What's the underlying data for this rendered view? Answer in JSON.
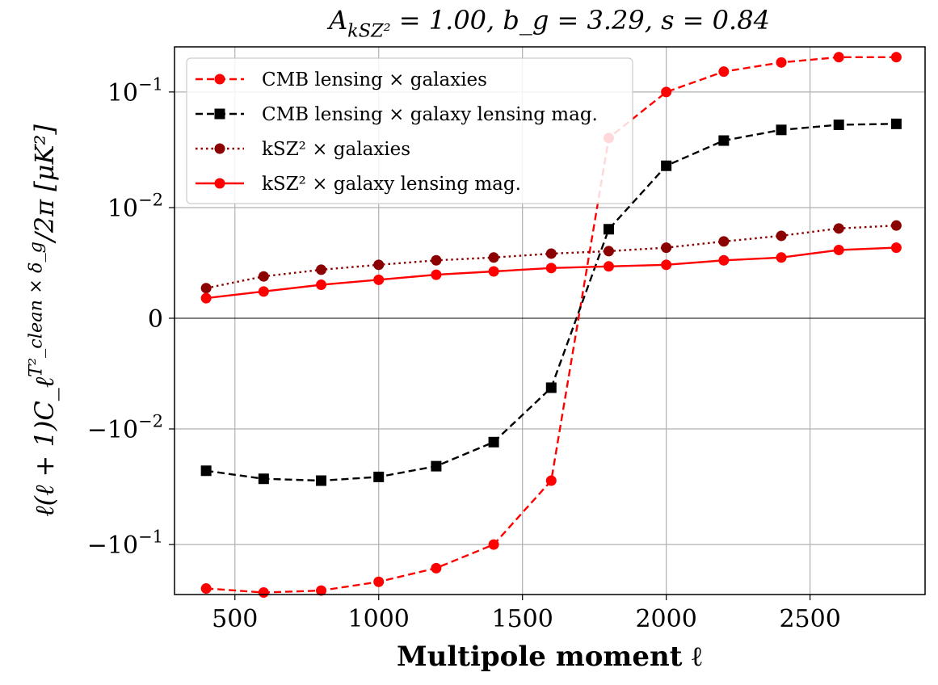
{
  "chart_data": {
    "type": "line",
    "title": "A_{kSZ²} = 1.00, b_g = 3.29, s = 0.84",
    "xlabel": "Multipole moment ℓ",
    "ylabel": "ℓ(ℓ + 1)C_ℓ^{T²_clean × δ_g}/2π [μK²]",
    "xlim": [
      290,
      2900
    ],
    "yscale": "symlog",
    "linthresh": 0.003,
    "x_ticks": [
      500,
      1000,
      1500,
      2000,
      2500
    ],
    "x_tick_labels": [
      "500",
      "1000",
      "1500",
      "2000",
      "2500"
    ],
    "y_ticks": [
      -0.1,
      -0.01,
      0,
      0.01,
      0.1
    ],
    "y_tick_labels": [
      "−10^{−1}",
      "−10^{−2}",
      "0",
      "10^{−2}",
      "10^{−1}"
    ],
    "grid": true,
    "legend_position": "upper-left",
    "x": [
      400,
      600,
      800,
      1000,
      1200,
      1400,
      1600,
      1800,
      2000,
      2200,
      2400,
      2600,
      2800
    ],
    "series": [
      {
        "name": "CMB lensing × galaxies",
        "color": "#ff0000",
        "linestyle": "dashed",
        "marker": "circle",
        "values": [
          -0.24,
          -0.26,
          -0.25,
          -0.21,
          -0.16,
          -0.1,
          -0.028,
          0.04,
          0.1,
          0.15,
          0.18,
          0.2,
          0.2
        ]
      },
      {
        "name": "CMB lensing × galaxy lensing mag.",
        "color": "#000000",
        "linestyle": "dashed",
        "marker": "square",
        "values": [
          -0.023,
          -0.027,
          -0.028,
          -0.026,
          -0.021,
          -0.013,
          -0.0044,
          0.0065,
          0.023,
          0.038,
          0.047,
          0.052,
          0.053
        ]
      },
      {
        "name": "kSZ² × galaxies",
        "color": "#8b0000",
        "linestyle": "dotted",
        "marker": "circle",
        "values": [
          0.0018,
          0.0025,
          0.0029,
          0.0032,
          0.0035,
          0.0037,
          0.004,
          0.0042,
          0.0045,
          0.0051,
          0.0057,
          0.0066,
          0.007
        ]
      },
      {
        "name": "kSZ² × galaxy lensing mag.",
        "color": "#ff0000",
        "linestyle": "solid",
        "marker": "circle",
        "values": [
          0.0012,
          0.0016,
          0.002,
          0.0023,
          0.0026,
          0.0028,
          0.003,
          0.0031,
          0.0032,
          0.0035,
          0.0037,
          0.0043,
          0.0045
        ]
      }
    ]
  }
}
